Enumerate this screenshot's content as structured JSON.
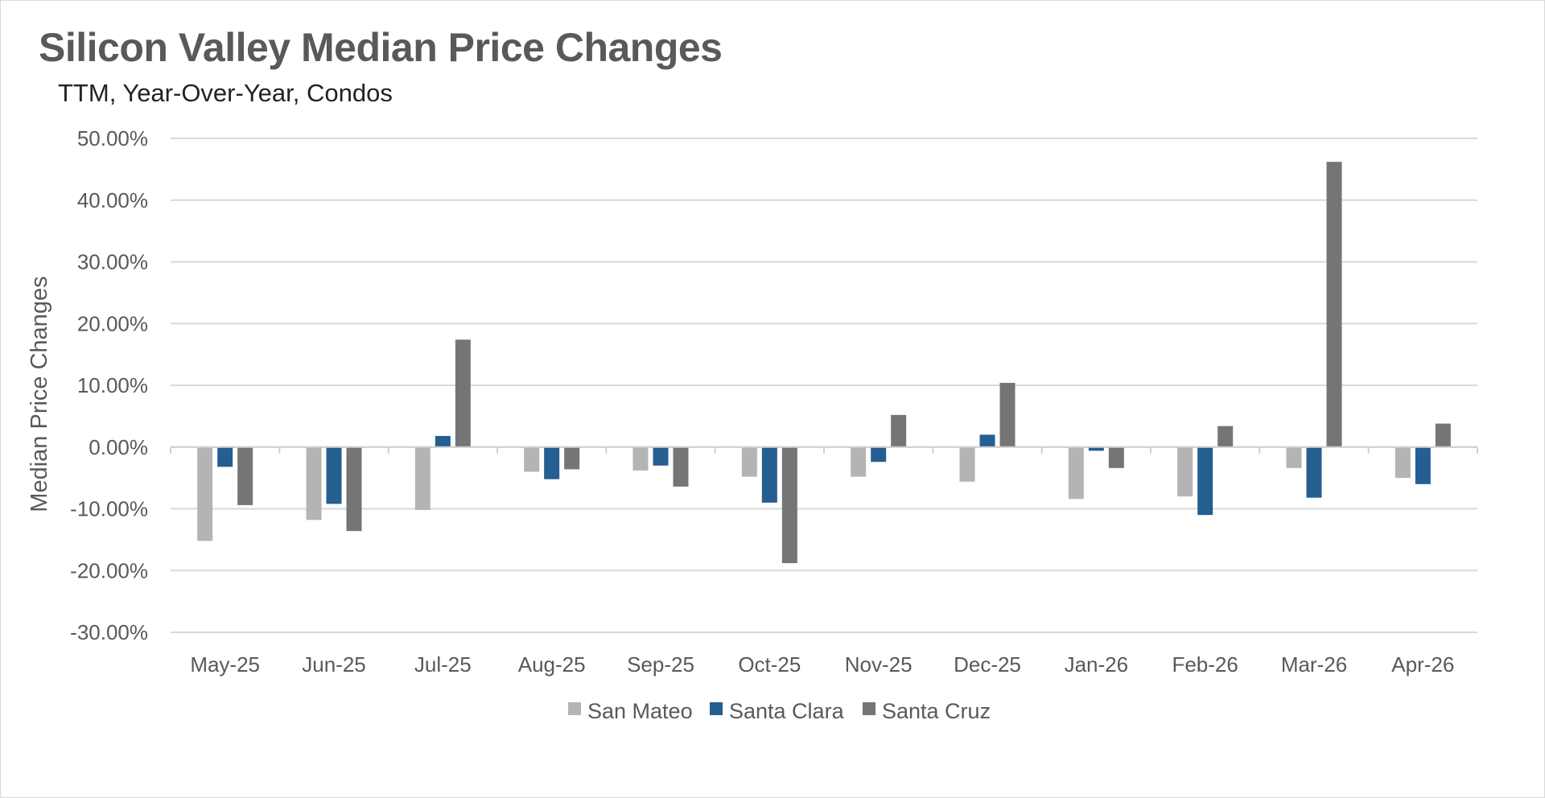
{
  "chart_data": {
    "type": "bar",
    "title": "Silicon Valley Median Price Changes",
    "subtitle": "TTM, Year-Over-Year, Condos",
    "ylabel": "Median Price Changes",
    "xlabel": "",
    "ylim": [
      -30,
      50
    ],
    "yticks": [
      50,
      40,
      30,
      20,
      10,
      0,
      -10,
      -20,
      -30
    ],
    "ytick_labels": [
      "50.00%",
      "40.00%",
      "30.00%",
      "20.00%",
      "10.00%",
      "0.00%",
      "-10.00%",
      "-20.00%",
      "-30.00%"
    ],
    "categories": [
      "May-25",
      "Jun-25",
      "Jul-25",
      "Aug-25",
      "Sep-25",
      "Oct-25",
      "Nov-25",
      "Dec-25",
      "Jan-26",
      "Feb-26",
      "Mar-26",
      "Apr-26"
    ],
    "series": [
      {
        "name": "San Mateo",
        "color": "#b4b4b4",
        "values": [
          -15.2,
          -11.8,
          -10.2,
          -4.0,
          -3.8,
          -4.8,
          -4.8,
          -5.6,
          -8.4,
          -8.0,
          -3.4,
          -5.0
        ]
      },
      {
        "name": "Santa Clara",
        "color": "#255e91",
        "values": [
          -3.2,
          -9.2,
          1.8,
          -5.2,
          -3.0,
          -9.0,
          -2.4,
          2.0,
          -0.6,
          -11.0,
          -8.2,
          -6.0
        ]
      },
      {
        "name": "Santa Cruz",
        "color": "#757575",
        "values": [
          -9.4,
          -13.6,
          17.4,
          -3.6,
          -6.4,
          -18.8,
          5.2,
          10.4,
          -3.4,
          3.4,
          46.2,
          3.8
        ]
      }
    ],
    "grid": true,
    "legend_position": "bottom"
  }
}
